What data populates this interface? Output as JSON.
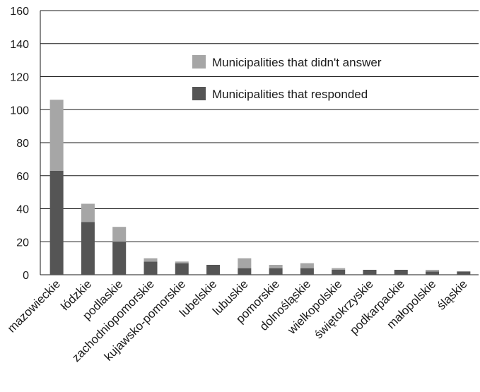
{
  "chart_data": {
    "type": "bar",
    "stacked": true,
    "categories": [
      "mazowieckie",
      "łódzkie",
      "podlaskie",
      "zachodniopomorskie",
      "kujawsko-pomorskie",
      "lubelskie",
      "lubuskie",
      "pomorskie",
      "dolnośląskie",
      "wielkopolskie",
      "świętokrzyskie",
      "podkarpackie",
      "małopolskie",
      "śląskie"
    ],
    "series": [
      {
        "name": "Municipalities that responded",
        "color": "#555555",
        "values": [
          63,
          32,
          20,
          8,
          7,
          6,
          4,
          4,
          4,
          3,
          3,
          3,
          2,
          2
        ]
      },
      {
        "name": "Municipalities that didn't answer",
        "color": "#a6a6a6",
        "values": [
          43,
          11,
          9,
          2,
          1,
          0,
          6,
          2,
          3,
          1,
          0,
          0,
          1,
          0
        ]
      }
    ],
    "legend_order": [
      1,
      0
    ],
    "yticks": [
      0,
      20,
      40,
      60,
      80,
      100,
      120,
      140,
      160
    ],
    "ylim": [
      0,
      160
    ],
    "grid": true,
    "legend_position": "top-right"
  }
}
